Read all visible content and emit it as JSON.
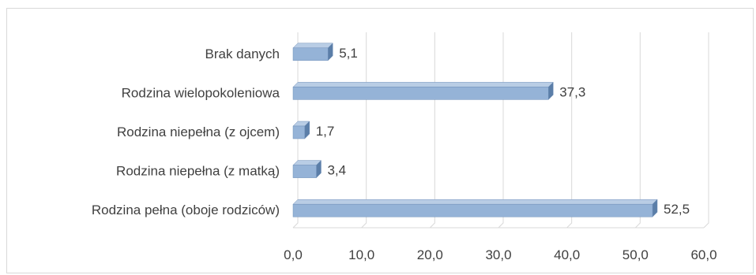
{
  "chart_data": {
    "type": "bar",
    "orientation": "horizontal",
    "categories": [
      "Rodzina pełna (oboje rodziców)",
      "Rodzina niepełna (z matką)",
      "Rodzina niepełna (z ojcem)",
      "Rodzina wielopokoleniowa",
      "Brak danych"
    ],
    "values": [
      52.5,
      3.4,
      1.7,
      37.3,
      5.1
    ],
    "value_labels": [
      "52,5",
      "3,4",
      "1,7",
      "37,3",
      "5,1"
    ],
    "xlim": [
      0,
      60
    ],
    "x_ticks": [
      0,
      10,
      20,
      30,
      40,
      50,
      60
    ],
    "x_tick_labels": [
      "0,0",
      "10,0",
      "20,0",
      "30,0",
      "40,0",
      "50,0",
      "60,0"
    ],
    "grid": true,
    "legend": "none",
    "bar_style": "3d",
    "colors": {
      "bar_front": "#95b3d7",
      "bar_top": "#b9cde5",
      "bar_side": "#5b7ea8",
      "bar_edge": "#6f8fb8",
      "grid": "#d9d9d9",
      "text": "#404040"
    }
  }
}
